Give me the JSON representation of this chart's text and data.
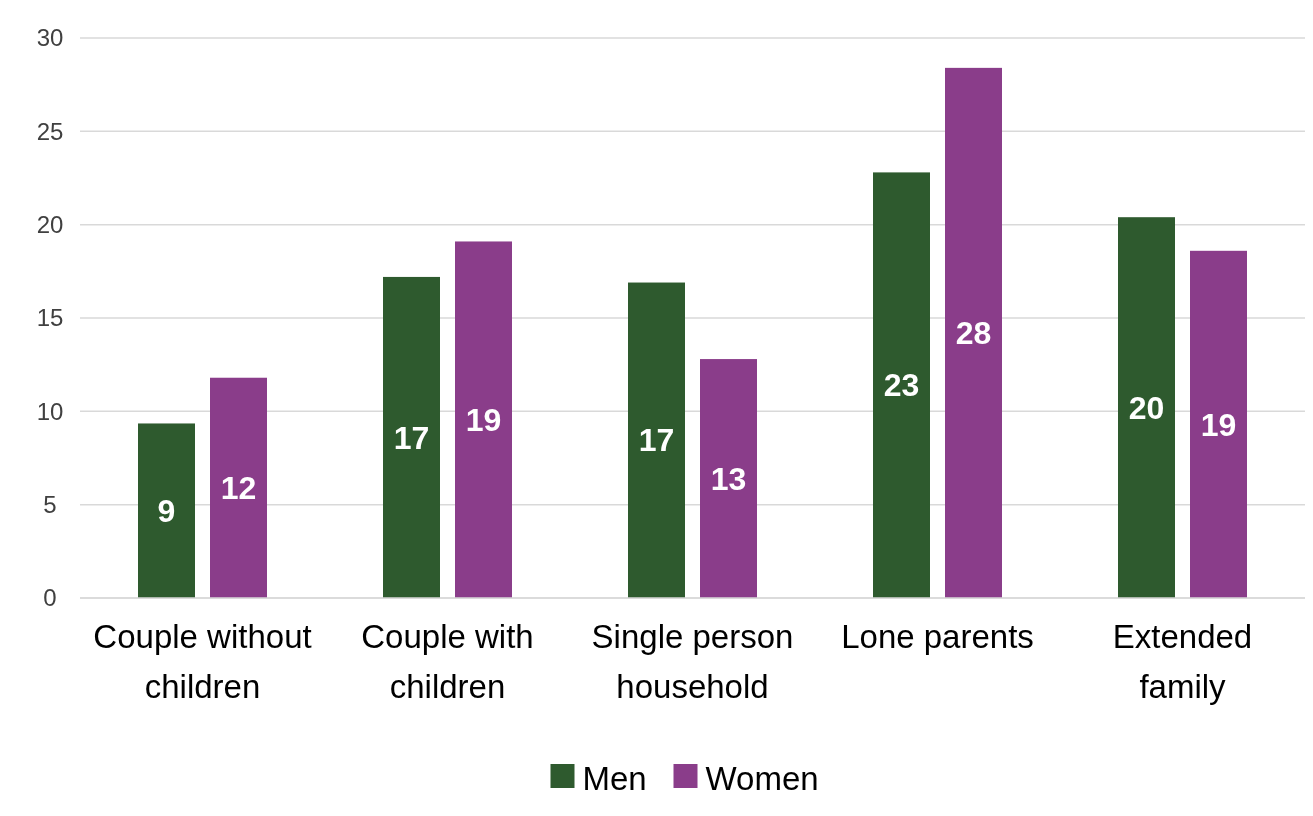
{
  "chart_data": {
    "type": "bar",
    "categories": [
      "Couple without children",
      "Couple with children",
      "Single person household",
      "Lone parents",
      "Extended family"
    ],
    "series": [
      {
        "name": "Men",
        "color": "#2e5a2e",
        "values": [
          9.35,
          17.2,
          16.9,
          22.8,
          20.4
        ],
        "value_labels": [
          "9",
          "17",
          "17",
          "23",
          "20"
        ]
      },
      {
        "name": "Women",
        "color": "#8a3d8a",
        "values": [
          11.8,
          19.1,
          12.8,
          28.4,
          18.6
        ],
        "value_labels": [
          "12",
          "19",
          "13",
          "28",
          "19"
        ]
      }
    ],
    "ylim": [
      0,
      30
    ],
    "yticks": [
      0,
      5,
      10,
      15,
      20,
      25,
      30
    ],
    "grid": "y",
    "legend": "bottom"
  }
}
